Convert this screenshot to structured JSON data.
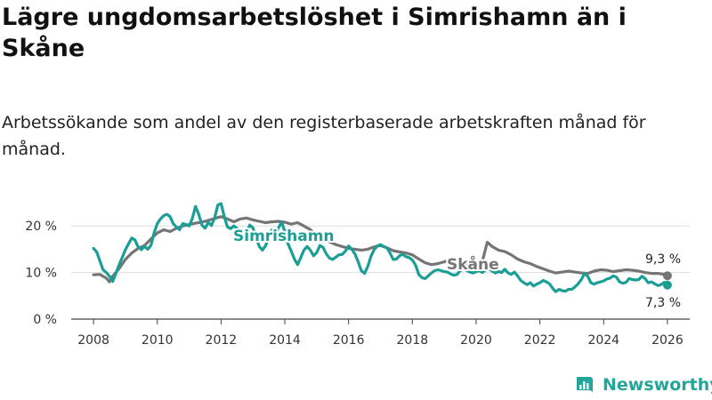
{
  "title": "Lägre ungdomsarbetslöshet i Simrishamn än i Skåne",
  "subtitle": "Arbetssökande som andel av den registerbaserade arbetskraften månad för månad.",
  "brand": {
    "name": "Newsworthy",
    "icon": "newsworthy-chart-icon",
    "color": "#24a59a"
  },
  "chart_data": {
    "type": "line",
    "title": "Lägre ungdomsarbetslöshet i Simrishamn än i Skåne",
    "xlabel": "",
    "ylabel": "",
    "xlim": [
      2007.3,
      2026.7
    ],
    "ylim": [
      0,
      25
    ],
    "y_ticks": [
      0,
      10,
      20
    ],
    "y_tick_labels": [
      "0 %",
      "10 %",
      "20 %"
    ],
    "x_ticks": [
      2008,
      2010,
      2012,
      2014,
      2016,
      2018,
      2020,
      2022,
      2024,
      2026
    ],
    "x_tick_labels": [
      "2008",
      "2010",
      "2012",
      "2014",
      "2016",
      "2018",
      "2020",
      "2022",
      "2024",
      "2026"
    ],
    "grid": true,
    "series": [
      {
        "name": "Skåne",
        "color": "#767476",
        "last_value_label": "9,3 %",
        "points": [
          [
            2008.0,
            9.5
          ],
          [
            2008.2,
            9.6
          ],
          [
            2008.4,
            8.8
          ],
          [
            2008.5,
            8.0
          ],
          [
            2008.6,
            9.2
          ],
          [
            2008.8,
            10.8
          ],
          [
            2009.0,
            12.8
          ],
          [
            2009.2,
            14.2
          ],
          [
            2009.4,
            15.2
          ],
          [
            2009.6,
            15.8
          ],
          [
            2009.8,
            17.2
          ],
          [
            2010.0,
            18.5
          ],
          [
            2010.2,
            19.2
          ],
          [
            2010.4,
            18.8
          ],
          [
            2010.6,
            19.5
          ],
          [
            2010.8,
            20.0
          ],
          [
            2011.0,
            20.3
          ],
          [
            2011.2,
            20.6
          ],
          [
            2011.4,
            20.8
          ],
          [
            2011.6,
            21.2
          ],
          [
            2011.8,
            21.6
          ],
          [
            2012.0,
            22.0
          ],
          [
            2012.2,
            21.5
          ],
          [
            2012.4,
            20.9
          ],
          [
            2012.6,
            21.5
          ],
          [
            2012.8,
            21.7
          ],
          [
            2013.0,
            21.3
          ],
          [
            2013.2,
            21.0
          ],
          [
            2013.4,
            20.7
          ],
          [
            2013.6,
            20.9
          ],
          [
            2013.8,
            21.0
          ],
          [
            2014.0,
            20.8
          ],
          [
            2014.2,
            20.4
          ],
          [
            2014.4,
            20.7
          ],
          [
            2014.6,
            20.0
          ],
          [
            2014.8,
            19.2
          ],
          [
            2015.0,
            18.0
          ],
          [
            2015.2,
            17.3
          ],
          [
            2015.4,
            16.6
          ],
          [
            2015.6,
            16.0
          ],
          [
            2015.8,
            15.6
          ],
          [
            2016.0,
            15.2
          ],
          [
            2016.2,
            15.0
          ],
          [
            2016.4,
            14.8
          ],
          [
            2016.6,
            15.0
          ],
          [
            2016.8,
            15.5
          ],
          [
            2017.0,
            15.8
          ],
          [
            2017.2,
            15.3
          ],
          [
            2017.4,
            14.7
          ],
          [
            2017.6,
            14.4
          ],
          [
            2017.8,
            14.2
          ],
          [
            2018.0,
            13.8
          ],
          [
            2018.2,
            12.9
          ],
          [
            2018.4,
            12.1
          ],
          [
            2018.6,
            11.7
          ],
          [
            2018.8,
            11.9
          ],
          [
            2019.0,
            12.3
          ],
          [
            2019.2,
            12.6
          ],
          [
            2019.4,
            12.3
          ],
          [
            2019.6,
            12.0
          ],
          [
            2019.8,
            11.9
          ],
          [
            2020.0,
            11.8
          ],
          [
            2020.2,
            12.5
          ],
          [
            2020.35,
            16.5
          ],
          [
            2020.5,
            15.6
          ],
          [
            2020.7,
            14.8
          ],
          [
            2020.9,
            14.5
          ],
          [
            2021.1,
            13.8
          ],
          [
            2021.3,
            12.9
          ],
          [
            2021.5,
            12.3
          ],
          [
            2021.7,
            11.9
          ],
          [
            2021.9,
            11.3
          ],
          [
            2022.1,
            10.8
          ],
          [
            2022.3,
            10.3
          ],
          [
            2022.5,
            9.9
          ],
          [
            2022.7,
            10.1
          ],
          [
            2022.9,
            10.3
          ],
          [
            2023.1,
            10.1
          ],
          [
            2023.3,
            9.9
          ],
          [
            2023.5,
            9.8
          ],
          [
            2023.7,
            10.3
          ],
          [
            2023.9,
            10.6
          ],
          [
            2024.1,
            10.5
          ],
          [
            2024.3,
            10.2
          ],
          [
            2024.5,
            10.4
          ],
          [
            2024.7,
            10.6
          ],
          [
            2024.9,
            10.5
          ],
          [
            2025.1,
            10.3
          ],
          [
            2025.3,
            10.0
          ],
          [
            2025.5,
            9.8
          ],
          [
            2025.7,
            9.8
          ],
          [
            2025.9,
            9.6
          ],
          [
            2026.0,
            9.3
          ]
        ]
      },
      {
        "name": "Simrishamn",
        "color": "#1a9e96",
        "last_value_label": "7,3 %",
        "points": [
          [
            2008.0,
            15.2
          ],
          [
            2008.1,
            14.4
          ],
          [
            2008.2,
            12.5
          ],
          [
            2008.3,
            10.6
          ],
          [
            2008.4,
            10.0
          ],
          [
            2008.5,
            9.2
          ],
          [
            2008.6,
            8.1
          ],
          [
            2008.7,
            9.8
          ],
          [
            2008.8,
            11.6
          ],
          [
            2008.9,
            13.2
          ],
          [
            2009.0,
            14.9
          ],
          [
            2009.1,
            16.2
          ],
          [
            2009.2,
            17.4
          ],
          [
            2009.3,
            17.0
          ],
          [
            2009.4,
            15.5
          ],
          [
            2009.5,
            14.9
          ],
          [
            2009.6,
            15.6
          ],
          [
            2009.7,
            15.0
          ],
          [
            2009.8,
            15.8
          ],
          [
            2009.9,
            18.5
          ],
          [
            2010.0,
            20.5
          ],
          [
            2010.1,
            21.5
          ],
          [
            2010.2,
            22.2
          ],
          [
            2010.3,
            22.5
          ],
          [
            2010.4,
            22.0
          ],
          [
            2010.5,
            20.5
          ],
          [
            2010.6,
            19.8
          ],
          [
            2010.7,
            19.2
          ],
          [
            2010.8,
            20.5
          ],
          [
            2010.9,
            20.3
          ],
          [
            2011.0,
            20.0
          ],
          [
            2011.1,
            21.6
          ],
          [
            2011.2,
            24.2
          ],
          [
            2011.3,
            22.5
          ],
          [
            2011.4,
            20.2
          ],
          [
            2011.5,
            19.5
          ],
          [
            2011.6,
            20.8
          ],
          [
            2011.7,
            20.1
          ],
          [
            2011.8,
            21.8
          ],
          [
            2011.9,
            24.5
          ],
          [
            2012.0,
            24.8
          ],
          [
            2012.1,
            22.0
          ],
          [
            2012.2,
            19.8
          ],
          [
            2012.3,
            19.4
          ],
          [
            2012.4,
            20.0
          ],
          [
            2012.5,
            19.5
          ],
          [
            2012.6,
            18.2
          ],
          [
            2012.7,
            17.5
          ],
          [
            2012.8,
            18.5
          ],
          [
            2012.9,
            20.2
          ],
          [
            2013.0,
            19.6
          ],
          [
            2013.1,
            17.4
          ],
          [
            2013.2,
            15.6
          ],
          [
            2013.3,
            14.8
          ],
          [
            2013.4,
            15.8
          ],
          [
            2013.5,
            17.6
          ],
          [
            2013.6,
            19.2
          ],
          [
            2013.7,
            18.3
          ],
          [
            2013.8,
            19.6
          ],
          [
            2013.9,
            20.8
          ],
          [
            2014.0,
            18.8
          ],
          [
            2014.1,
            16.2
          ],
          [
            2014.2,
            14.6
          ],
          [
            2014.3,
            12.9
          ],
          [
            2014.4,
            11.7
          ],
          [
            2014.5,
            13.2
          ],
          [
            2014.6,
            14.8
          ],
          [
            2014.7,
            15.6
          ],
          [
            2014.8,
            14.8
          ],
          [
            2014.9,
            13.6
          ],
          [
            2015.0,
            14.3
          ],
          [
            2015.1,
            15.8
          ],
          [
            2015.2,
            15.4
          ],
          [
            2015.3,
            14.0
          ],
          [
            2015.4,
            13.1
          ],
          [
            2015.5,
            12.8
          ],
          [
            2015.6,
            13.3
          ],
          [
            2015.7,
            13.8
          ],
          [
            2015.8,
            13.9
          ],
          [
            2015.9,
            14.6
          ],
          [
            2016.0,
            15.7
          ],
          [
            2016.1,
            15.0
          ],
          [
            2016.2,
            14.0
          ],
          [
            2016.3,
            12.3
          ],
          [
            2016.4,
            10.4
          ],
          [
            2016.5,
            9.8
          ],
          [
            2016.6,
            11.3
          ],
          [
            2016.7,
            13.5
          ],
          [
            2016.8,
            14.9
          ],
          [
            2016.9,
            15.7
          ],
          [
            2017.0,
            16.0
          ],
          [
            2017.1,
            15.6
          ],
          [
            2017.2,
            15.3
          ],
          [
            2017.3,
            14.2
          ],
          [
            2017.4,
            12.8
          ],
          [
            2017.5,
            12.9
          ],
          [
            2017.6,
            13.6
          ],
          [
            2017.7,
            13.9
          ],
          [
            2017.8,
            13.4
          ],
          [
            2017.9,
            13.2
          ],
          [
            2018.0,
            12.7
          ],
          [
            2018.1,
            11.6
          ],
          [
            2018.2,
            9.6
          ],
          [
            2018.3,
            8.9
          ],
          [
            2018.4,
            8.7
          ],
          [
            2018.5,
            9.3
          ],
          [
            2018.6,
            9.9
          ],
          [
            2018.7,
            10.4
          ],
          [
            2018.8,
            10.6
          ],
          [
            2018.9,
            10.4
          ],
          [
            2019.0,
            10.2
          ],
          [
            2019.1,
            10.1
          ],
          [
            2019.2,
            9.7
          ],
          [
            2019.3,
            9.4
          ],
          [
            2019.4,
            9.6
          ],
          [
            2019.5,
            10.4
          ],
          [
            2019.6,
            10.8
          ],
          [
            2019.7,
            10.5
          ],
          [
            2019.8,
            10.1
          ],
          [
            2019.9,
            9.9
          ],
          [
            2020.0,
            10.2
          ],
          [
            2020.1,
            10.4
          ],
          [
            2020.2,
            10.0
          ],
          [
            2020.3,
            10.6
          ],
          [
            2020.4,
            10.9
          ],
          [
            2020.5,
            10.3
          ],
          [
            2020.6,
            9.9
          ],
          [
            2020.7,
            10.2
          ],
          [
            2020.8,
            10.0
          ],
          [
            2020.9,
            10.7
          ],
          [
            2021.0,
            9.9
          ],
          [
            2021.1,
            9.6
          ],
          [
            2021.2,
            10.1
          ],
          [
            2021.3,
            9.3
          ],
          [
            2021.4,
            8.3
          ],
          [
            2021.5,
            7.8
          ],
          [
            2021.6,
            7.4
          ],
          [
            2021.7,
            7.8
          ],
          [
            2021.8,
            7.1
          ],
          [
            2021.9,
            7.5
          ],
          [
            2022.0,
            7.8
          ],
          [
            2022.1,
            8.3
          ],
          [
            2022.2,
            8.0
          ],
          [
            2022.3,
            7.6
          ],
          [
            2022.4,
            6.6
          ],
          [
            2022.5,
            5.9
          ],
          [
            2022.6,
            6.4
          ],
          [
            2022.7,
            6.1
          ],
          [
            2022.8,
            6.0
          ],
          [
            2022.9,
            6.4
          ],
          [
            2023.0,
            6.4
          ],
          [
            2023.1,
            6.9
          ],
          [
            2023.2,
            7.6
          ],
          [
            2023.3,
            8.5
          ],
          [
            2023.4,
            9.8
          ],
          [
            2023.5,
            9.2
          ],
          [
            2023.6,
            7.8
          ],
          [
            2023.7,
            7.5
          ],
          [
            2023.8,
            7.8
          ],
          [
            2023.9,
            8.0
          ],
          [
            2024.0,
            8.2
          ],
          [
            2024.1,
            8.6
          ],
          [
            2024.2,
            8.8
          ],
          [
            2024.3,
            9.3
          ],
          [
            2024.4,
            9.0
          ],
          [
            2024.5,
            8.0
          ],
          [
            2024.6,
            7.7
          ],
          [
            2024.7,
            7.9
          ],
          [
            2024.8,
            8.7
          ],
          [
            2024.9,
            8.5
          ],
          [
            2025.0,
            8.4
          ],
          [
            2025.1,
            8.5
          ],
          [
            2025.2,
            9.2
          ],
          [
            2025.3,
            8.7
          ],
          [
            2025.4,
            7.8
          ],
          [
            2025.5,
            8.0
          ],
          [
            2025.6,
            7.6
          ],
          [
            2025.7,
            7.2
          ],
          [
            2025.8,
            7.4
          ],
          [
            2025.9,
            7.9
          ],
          [
            2026.0,
            7.3
          ]
        ]
      }
    ]
  }
}
